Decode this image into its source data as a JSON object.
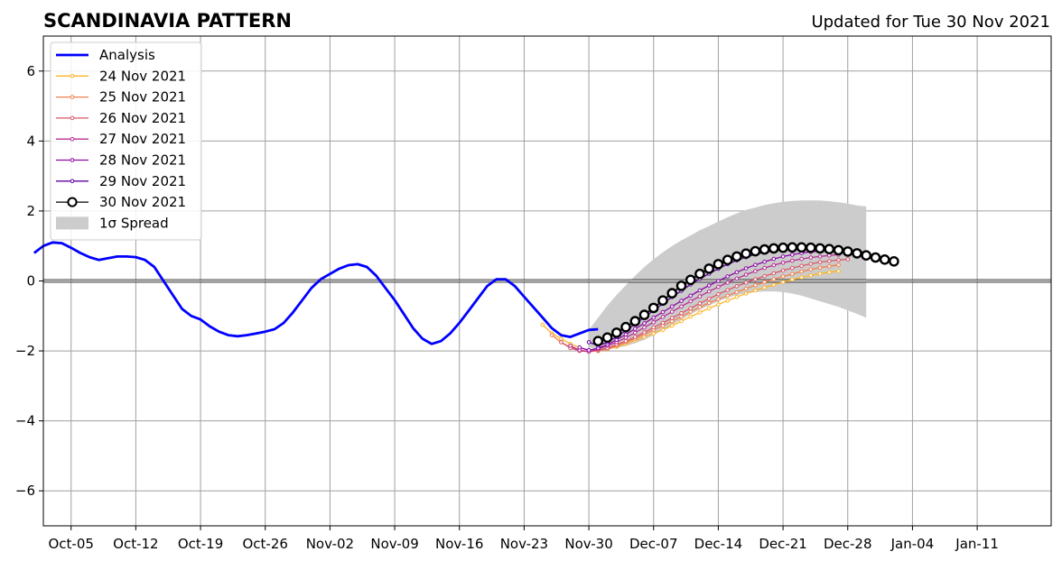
{
  "header": {
    "title": "SCANDINAVIA PATTERN",
    "updated": "Updated for Tue 30 Nov 2021"
  },
  "chart_data": {
    "type": "line",
    "title": "SCANDINAVIA PATTERN",
    "subtitle": "Updated for Tue 30 Nov 2021",
    "xlabel": "",
    "ylabel": "",
    "xlim": [
      "2021-10-02",
      "2022-01-19"
    ],
    "ylim": [
      -7,
      7
    ],
    "grid": true,
    "legend_position": "top-left",
    "x_ticks": [
      "Oct-05",
      "Oct-12",
      "Oct-19",
      "Oct-26",
      "Nov-02",
      "Nov-09",
      "Nov-16",
      "Nov-23",
      "Nov-30",
      "Dec-07",
      "Dec-14",
      "Dec-21",
      "Dec-28",
      "Jan-04",
      "Jan-11"
    ],
    "x_tick_dates": [
      "2021-10-05",
      "2021-10-12",
      "2021-10-19",
      "2021-10-26",
      "2021-11-02",
      "2021-11-09",
      "2021-11-16",
      "2021-11-23",
      "2021-11-30",
      "2021-12-07",
      "2021-12-14",
      "2021-12-21",
      "2021-12-28",
      "2022-01-04",
      "2022-01-11"
    ],
    "y_ticks": [
      -6,
      -4,
      -2,
      0,
      2,
      4,
      6
    ],
    "y_tick_labels": [
      "−6",
      "−4",
      "−2",
      "0",
      "2",
      "4",
      "6"
    ],
    "analysis": {
      "name": "Analysis",
      "color": "#0000ff",
      "start": "2021-10-01",
      "values": [
        0.8,
        1.0,
        1.1,
        1.08,
        0.95,
        0.8,
        0.68,
        0.6,
        0.65,
        0.7,
        0.7,
        0.68,
        0.6,
        0.4,
        0.0,
        -0.4,
        -0.8,
        -1.0,
        -1.1,
        -1.3,
        -1.45,
        -1.55,
        -1.58,
        -1.55,
        -1.5,
        -1.45,
        -1.38,
        -1.2,
        -0.9,
        -0.55,
        -0.2,
        0.05,
        0.2,
        0.35,
        0.45,
        0.48,
        0.4,
        0.15,
        -0.2,
        -0.55,
        -0.95,
        -1.35,
        -1.65,
        -1.8,
        -1.72,
        -1.5,
        -1.2,
        -0.85,
        -0.5,
        -0.15,
        0.05,
        0.05,
        -0.15,
        -0.45,
        -0.75,
        -1.05,
        -1.35,
        -1.55,
        -1.6,
        -1.5,
        -1.4,
        -1.38
      ]
    },
    "spread": {
      "name": "1σ Spread",
      "color": "#cccccc",
      "start": "2021-11-30",
      "upper": [
        -1.4,
        -1.05,
        -0.7,
        -0.4,
        -0.12,
        0.15,
        0.4,
        0.62,
        0.82,
        1.0,
        1.16,
        1.3,
        1.45,
        1.57,
        1.7,
        1.82,
        1.93,
        2.03,
        2.1,
        2.17,
        2.22,
        2.26,
        2.29,
        2.3,
        2.3,
        2.3,
        2.28,
        2.25,
        2.21,
        2.16,
        2.13
      ],
      "lower": [
        -1.9,
        -1.95,
        -1.95,
        -1.92,
        -1.86,
        -1.78,
        -1.68,
        -1.55,
        -1.4,
        -1.25,
        -1.1,
        -0.95,
        -0.82,
        -0.7,
        -0.58,
        -0.48,
        -0.4,
        -0.35,
        -0.32,
        -0.3,
        -0.3,
        -0.32,
        -0.36,
        -0.42,
        -0.5,
        -0.58,
        -0.66,
        -0.74,
        -0.84,
        -0.94,
        -1.05
      ]
    },
    "series": [
      {
        "name": "24 Nov 2021",
        "color": "#fdb428",
        "start": "2021-11-25",
        "values": [
          -1.25,
          -1.5,
          -1.65,
          -1.8,
          -1.9,
          -1.98,
          -2.0,
          -1.95,
          -1.88,
          -1.8,
          -1.7,
          -1.6,
          -1.5,
          -1.4,
          -1.28,
          -1.15,
          -1.02,
          -0.9,
          -0.78,
          -0.67,
          -0.56,
          -0.46,
          -0.36,
          -0.27,
          -0.19,
          -0.11,
          -0.03,
          0.04,
          0.1,
          0.16,
          0.21,
          0.25,
          0.28
        ]
      },
      {
        "name": "25 Nov 2021",
        "color": "#f0804e",
        "start": "2021-11-26",
        "values": [
          -1.55,
          -1.75,
          -1.9,
          -1.98,
          -2.02,
          -2.0,
          -1.95,
          -1.85,
          -1.75,
          -1.65,
          -1.52,
          -1.4,
          -1.28,
          -1.15,
          -1.02,
          -0.88,
          -0.75,
          -0.63,
          -0.52,
          -0.42,
          -0.32,
          -0.22,
          -0.12,
          -0.03,
          0.05,
          0.13,
          0.2,
          0.27,
          0.33,
          0.38,
          0.42,
          0.46
        ]
      },
      {
        "name": "26 Nov 2021",
        "color": "#d9576b",
        "start": "2021-11-27",
        "values": [
          -1.75,
          -1.92,
          -2.0,
          -2.02,
          -1.98,
          -1.92,
          -1.82,
          -1.72,
          -1.6,
          -1.47,
          -1.33,
          -1.2,
          -1.06,
          -0.92,
          -0.78,
          -0.64,
          -0.51,
          -0.38,
          -0.26,
          -0.15,
          -0.05,
          0.05,
          0.14,
          0.22,
          0.3,
          0.37,
          0.43,
          0.49,
          0.54,
          0.57,
          0.6,
          0.62
        ]
      },
      {
        "name": "27 Nov 2021",
        "color": "#b72e93",
        "start": "2021-11-28",
        "values": [
          -1.85,
          -1.98,
          -2.02,
          -1.95,
          -1.85,
          -1.75,
          -1.62,
          -1.48,
          -1.33,
          -1.18,
          -1.03,
          -0.88,
          -0.73,
          -0.58,
          -0.44,
          -0.3,
          -0.17,
          -0.05,
          0.07,
          0.18,
          0.28,
          0.37,
          0.45,
          0.52,
          0.58,
          0.63,
          0.67,
          0.7,
          0.73,
          0.75
        ]
      },
      {
        "name": "28 Nov 2021",
        "color": "#8b0aa5",
        "start": "2021-11-29",
        "values": [
          -1.9,
          -1.98,
          -1.92,
          -1.82,
          -1.68,
          -1.53,
          -1.37,
          -1.21,
          -1.05,
          -0.89,
          -0.73,
          -0.57,
          -0.42,
          -0.27,
          -0.13,
          0.0,
          0.13,
          0.25,
          0.36,
          0.46,
          0.55,
          0.63,
          0.7,
          0.75,
          0.8,
          0.83,
          0.85,
          0.86,
          0.86,
          0.85,
          0.83
        ]
      },
      {
        "name": "29 Nov 2021",
        "color": "#5c01a6",
        "start": "2021-11-30",
        "values": [
          -1.75,
          -1.85,
          -1.75,
          -1.6,
          -1.42,
          -1.23,
          -1.04,
          -0.84,
          -0.65,
          -0.46,
          -0.28,
          -0.1,
          0.06,
          0.21,
          0.35,
          0.48,
          0.59,
          0.68,
          0.76,
          0.82,
          0.86,
          0.89,
          0.9,
          0.9,
          0.89,
          0.88,
          0.87,
          0.86,
          0.85,
          0.84,
          0.82
        ]
      },
      {
        "name": "30 Nov 2021",
        "color": "#000000",
        "start": "2021-12-01",
        "values": [
          -1.72,
          -1.62,
          -1.48,
          -1.32,
          -1.15,
          -0.97,
          -0.77,
          -0.56,
          -0.35,
          -0.14,
          0.03,
          0.2,
          0.35,
          0.48,
          0.6,
          0.7,
          0.78,
          0.85,
          0.9,
          0.93,
          0.95,
          0.96,
          0.96,
          0.95,
          0.93,
          0.91,
          0.88,
          0.84,
          0.79,
          0.73,
          0.67,
          0.61,
          0.56
        ]
      }
    ]
  }
}
